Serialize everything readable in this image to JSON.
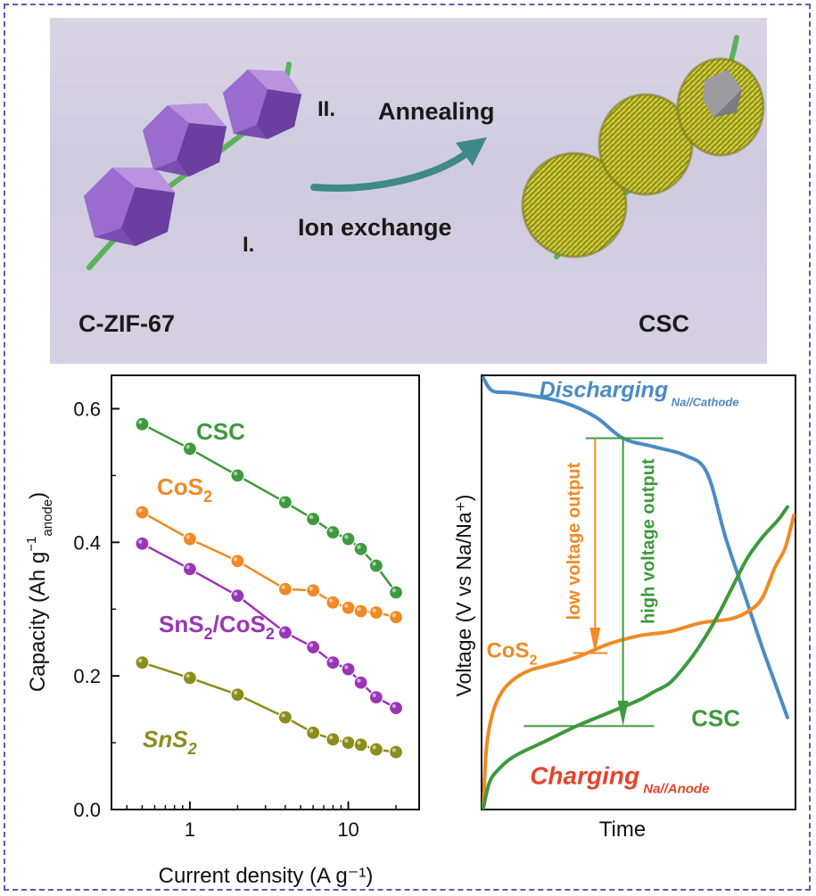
{
  "colors": {
    "csc": "#3d9a3d",
    "cos2": "#f08a24",
    "snscos": "#9a36b5",
    "sns2": "#8c8c1c",
    "discharging": "#4a8bc4",
    "charging_label": "#e2452c",
    "cyl_purple": "#8a5cb8",
    "cyl_yellow": "#bdbd2a",
    "arrow": "#3d8a88",
    "wire": "#5bb25b"
  },
  "scheme": {
    "step_two": "II.",
    "annealing": "Annealing",
    "step_one": "I.",
    "ion_exchange": "Ion exchange",
    "left_label": "C-ZIF-67",
    "right_label": "CSC"
  },
  "chart_data": [
    {
      "type": "scatter",
      "title": "",
      "xlabel": "Current density (A g⁻¹)",
      "ylabel_main": "Capacity (Ah g",
      "ylabel_sub": "anode",
      "ylabel_sup": "−1",
      "ylabel_end": ")",
      "xscale": "log",
      "xlim": [
        0.32,
        28
      ],
      "ylim": [
        0.0,
        0.65
      ],
      "x_ticks": [
        {
          "v": 1,
          "label": "1"
        },
        {
          "v": 10,
          "label": "10"
        }
      ],
      "y_ticks": [
        {
          "v": 0.0,
          "label": "0.0"
        },
        {
          "v": 0.2,
          "label": "0.2"
        },
        {
          "v": 0.4,
          "label": "0.4"
        },
        {
          "v": 0.6,
          "label": "0.6"
        }
      ],
      "x": [
        0.5,
        1,
        2,
        4,
        6,
        8,
        10,
        12,
        15,
        20
      ],
      "series": [
        {
          "name": "CSC",
          "key": "csc",
          "label_main": "CSC",
          "label_sub": "",
          "label_rest": "",
          "label_sub2": "",
          "values": [
            0.577,
            0.54,
            0.5,
            0.46,
            0.435,
            0.415,
            0.405,
            0.39,
            0.365,
            0.325
          ]
        },
        {
          "name": "CoS2",
          "key": "cos2",
          "label_main": "CoS",
          "label_sub": "2",
          "label_rest": "",
          "label_sub2": "",
          "values": [
            0.445,
            0.405,
            0.372,
            0.33,
            0.328,
            0.31,
            0.302,
            0.297,
            0.295,
            0.288
          ]
        },
        {
          "name": "SnS2/CoS2",
          "key": "snscos",
          "label_main": "SnS",
          "label_sub": "2",
          "label_rest": "/CoS",
          "label_sub2": "2",
          "values": [
            0.398,
            0.36,
            0.32,
            0.265,
            0.243,
            0.22,
            0.21,
            0.19,
            0.168,
            0.152
          ]
        },
        {
          "name": "SnS2",
          "key": "sns2",
          "label_main": "SnS",
          "label_sub": "2",
          "label_rest": "",
          "label_sub2": "",
          "values": [
            0.22,
            0.197,
            0.172,
            0.138,
            0.115,
            0.105,
            0.1,
            0.097,
            0.09,
            0.086
          ]
        }
      ]
    },
    {
      "type": "line",
      "title": "",
      "xlabel": "Time",
      "ylabel": "Voltage (V vs Na/Na⁺)",
      "xlim": [
        0,
        100
      ],
      "ylim": [
        0,
        100
      ],
      "discharging_label": "Discharging",
      "discharging_sub": "Na//Cathode",
      "charging_label": "Charging",
      "charging_sub": "Na//Anode",
      "low_voltage_label": "low voltage output",
      "high_voltage_label": "high voltage output",
      "cos2_label_main": "CoS",
      "cos2_label_sub": "2",
      "csc_label": "CSC",
      "series": [
        {
          "name": "Discharging Na//Cathode",
          "key": "discharging",
          "x": [
            0,
            3,
            10,
            25,
            36,
            45,
            55,
            65,
            72,
            78,
            84,
            90,
            95,
            98
          ],
          "y": [
            100,
            97,
            96.5,
            94.5,
            91,
            86,
            84,
            82,
            78,
            63,
            50,
            37,
            27,
            21
          ]
        },
        {
          "name": "CoS2",
          "key": "cos2",
          "x": [
            0,
            1,
            3,
            6,
            10,
            15,
            20,
            30,
            40,
            50,
            60,
            70,
            80,
            86,
            90,
            94,
            97,
            99,
            100
          ],
          "y": [
            0,
            14,
            22,
            27,
            30,
            32,
            33,
            35,
            38,
            40,
            41,
            43,
            44,
            46,
            49,
            56,
            60,
            65,
            68
          ]
        },
        {
          "name": "CSC",
          "key": "csc",
          "x": [
            0,
            2,
            5,
            10,
            20,
            30,
            40,
            50,
            55,
            60,
            65,
            70,
            75,
            80,
            85,
            90,
            95,
            98
          ],
          "y": [
            0,
            6,
            9,
            12,
            15.5,
            19,
            22,
            25,
            27,
            29,
            33,
            38,
            44,
            51,
            58,
            63,
            67,
            70
          ]
        }
      ]
    }
  ]
}
